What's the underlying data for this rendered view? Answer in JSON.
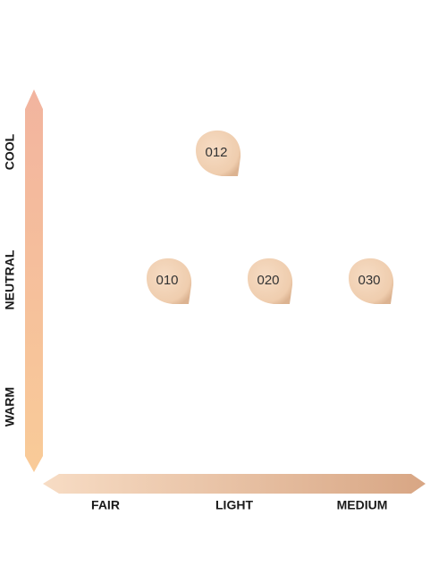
{
  "y_axis": {
    "labels": [
      "COOL",
      "NEUTRAL",
      "WARM"
    ]
  },
  "x_axis": {
    "labels": [
      "FAIR",
      "LIGHT",
      "MEDIUM"
    ]
  },
  "swatches": [
    {
      "label": "012"
    },
    {
      "label": "010"
    },
    {
      "label": "020"
    },
    {
      "label": "030"
    }
  ]
}
